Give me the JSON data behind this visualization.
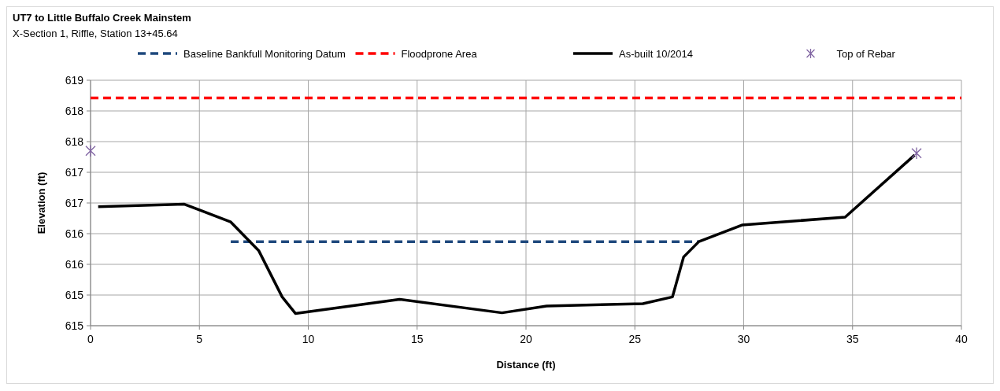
{
  "chart_data": {
    "type": "line",
    "title": "UT7 to Little Buffalo Creek Mainstem",
    "subtitle": "X-Section 1, Riffle, Station 13+45.64",
    "xlabel": "Distance (ft)",
    "ylabel": "Elevation (ft)",
    "xlim": [
      0,
      40
    ],
    "xticks": [
      0,
      5,
      10,
      15,
      20,
      25,
      30,
      35,
      40
    ],
    "ylim": [
      614.5,
      618.5
    ],
    "yticks": [
      {
        "value": 614.5,
        "label": "615"
      },
      {
        "value": 615,
        "label": "615"
      },
      {
        "value": 615.5,
        "label": "616"
      },
      {
        "value": 616,
        "label": "616"
      },
      {
        "value": 616.5,
        "label": "617"
      },
      {
        "value": 617,
        "label": "617"
      },
      {
        "value": 617.5,
        "label": "618"
      },
      {
        "value": 618,
        "label": "618"
      },
      {
        "value": 618.5,
        "label": "619"
      }
    ],
    "grid": true,
    "legend": "top",
    "series": [
      {
        "name": "Baseline Bankfull Monitoring Datum",
        "line_style": "dashed",
        "color": "#1f497d",
        "x": [
          6.44,
          27.94
        ],
        "values": [
          615.87,
          615.87
        ]
      },
      {
        "name": "Floodprone Area",
        "line_style": "dashed",
        "color": "#ff0000",
        "x": [
          0,
          40
        ],
        "values": [
          618.21,
          618.21
        ]
      },
      {
        "name": "As-built 10/2014",
        "line_style": "solid",
        "color": "#000000",
        "x": [
          0.35,
          4.31,
          6.44,
          7.73,
          8.8,
          9.41,
          14.19,
          18.9,
          20.95,
          25.37,
          26.73,
          27.24,
          27.94,
          29.92,
          34.66,
          37.85
        ],
        "values": [
          616.44,
          616.48,
          616.19,
          615.72,
          614.97,
          614.7,
          614.93,
          614.71,
          614.82,
          614.86,
          614.97,
          615.62,
          615.87,
          616.14,
          616.27,
          617.28
        ]
      },
      {
        "name": "Top of Rebar",
        "type": "scatter",
        "marker": "cross",
        "color": "#8064a2",
        "x": [
          0,
          37.94
        ],
        "values": [
          617.35,
          617.31
        ]
      }
    ]
  }
}
